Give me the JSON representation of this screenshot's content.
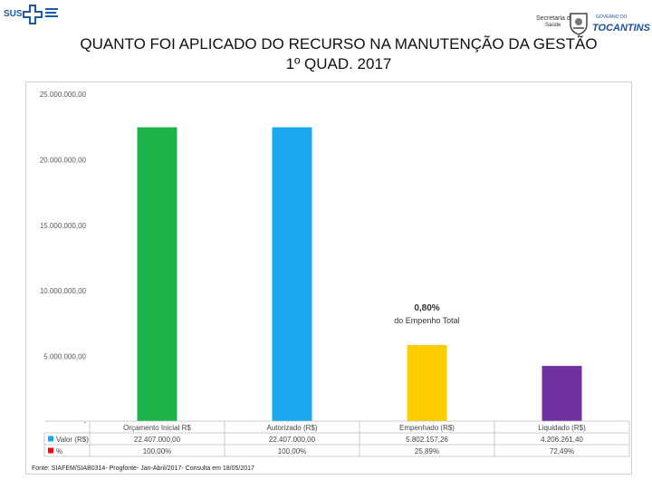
{
  "header": {
    "left_logo_text": "SUS",
    "right_logo_secretaria": "Secretaria da",
    "right_logo_saude": "Saúde",
    "right_logo_governo": "GOVERNO DO",
    "right_logo_state": "TOCANTINS"
  },
  "title_line1": "QUANTO FOI APLICADO DO RECURSO NA MANUTENÇÃO DA GESTÃO",
  "title_line2": "1º QUAD. 2017",
  "chart_data": {
    "type": "bar",
    "categories": [
      "Orçamento Inicial R$",
      "Autorizado (R$)",
      "Empenhado (R$)",
      "Liquidado (R$)"
    ],
    "values": [
      22407000.0,
      22407000.0,
      5802157.26,
      4206261.4
    ],
    "bar_colors": [
      "#1eb24a",
      "#1aa9ee",
      "#ffcc00",
      "#7030a0"
    ],
    "ylim": [
      0,
      25000000
    ],
    "y_ticks": [
      "-",
      "5.000.000,00",
      "10.000.000,00",
      "15.000.000,00",
      "20.000.000,00",
      "25.000.000,00"
    ],
    "y_tick_values": [
      0,
      5000000,
      10000000,
      15000000,
      20000000,
      25000000
    ],
    "grid": false,
    "annotation": {
      "value": "0,80%",
      "text": "do Empenho Total"
    },
    "table": {
      "rows": [
        {
          "label": "Valor (R$)",
          "legend_color": "#1aa9ee",
          "cells": [
            "22.407.000,00",
            "22.407.000,00",
            "5.802.157,26",
            "4.206.261,40"
          ]
        },
        {
          "label": "%",
          "legend_color": "#ff0000",
          "cells": [
            "100,00%",
            "100,00%",
            "25,89%",
            "72,49%"
          ]
        }
      ]
    }
  },
  "source": "Fonte: SIAFEM/SIAB0314- Progfonte- Jan-Abril/2017- Consulta em 18/05/2017"
}
